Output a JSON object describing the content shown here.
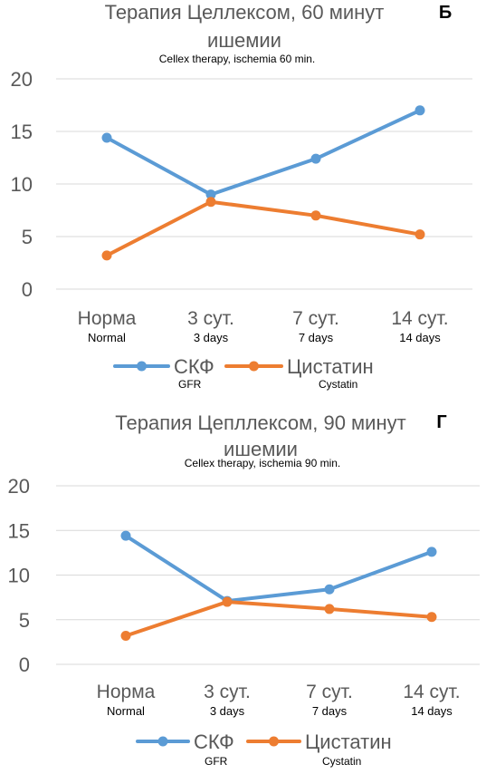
{
  "chart_data": [
    {
      "type": "line",
      "panel_letter": "Б",
      "title_line1": "Терапия Целлексом, 60 минут",
      "title_line2": "ишемии",
      "subtitle": "Cellex therapy, ischemia 60 min.",
      "categories": [
        "Норма",
        "3 сут.",
        "7 сут.",
        "14 сут."
      ],
      "categories_en": [
        "Normal",
        "3 days",
        "7 days",
        "14 days"
      ],
      "ylim": [
        0,
        20
      ],
      "yticks": [
        "0",
        "5",
        "10",
        "15",
        "20"
      ],
      "grid": true,
      "legend_position": "bottom",
      "series": [
        {
          "name": "СКФ",
          "name_en": "GFR",
          "color": "#5B9BD5",
          "values": [
            14.4,
            9.0,
            12.4,
            17.0
          ]
        },
        {
          "name": "Цистатин",
          "name_en": "Cystatin",
          "color": "#ED7D31",
          "values": [
            3.2,
            8.3,
            7.0,
            5.2
          ]
        }
      ]
    },
    {
      "type": "line",
      "panel_letter": "Г",
      "title_line1": "Терапия Цепллексом, 90 минут",
      "title_line2": "ишемии",
      "subtitle": "Cellex therapy, ischemia 90 min.",
      "categories": [
        "Норма",
        "3 сут.",
        "7 сут.",
        "14 сут."
      ],
      "categories_en": [
        "Normal",
        "3 days",
        "7 days",
        "14 days"
      ],
      "ylim": [
        0,
        20
      ],
      "yticks": [
        "0",
        "5",
        "10",
        "15",
        "20"
      ],
      "grid": true,
      "legend_position": "bottom",
      "series": [
        {
          "name": "СКФ",
          "name_en": "GFR",
          "color": "#5B9BD5",
          "values": [
            14.4,
            7.1,
            8.4,
            12.6
          ]
        },
        {
          "name": "Цистатин",
          "name_en": "Cystatin",
          "color": "#ED7D31",
          "values": [
            3.2,
            7.0,
            6.2,
            5.3
          ]
        }
      ]
    }
  ]
}
